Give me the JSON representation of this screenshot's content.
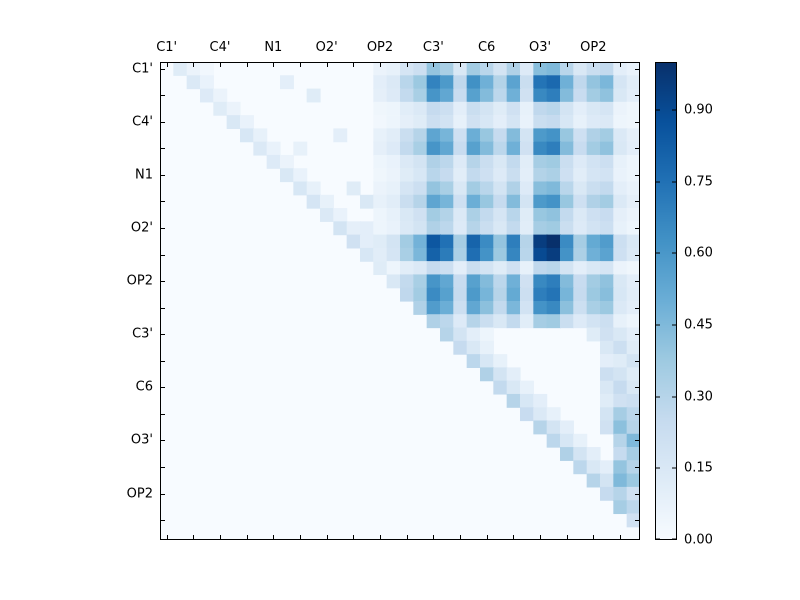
{
  "chart_data": {
    "type": "heatmap",
    "title": "",
    "xlabel": "",
    "ylabel": "",
    "matrix_size": 36,
    "tick_labels": [
      "C1'",
      "C4'",
      "N1",
      "O2'",
      "OP2",
      "C3'",
      "C6",
      "O3'",
      "OP2"
    ],
    "tick_positions": [
      0,
      4,
      8,
      12,
      16,
      20,
      24,
      28,
      32
    ],
    "colormap": {
      "name": "Blues",
      "stops": [
        [
          0.0,
          "#f7fbff"
        ],
        [
          0.125,
          "#deebf7"
        ],
        [
          0.25,
          "#c6dbef"
        ],
        [
          0.375,
          "#9ecae1"
        ],
        [
          0.5,
          "#6baed6"
        ],
        [
          0.625,
          "#4292c6"
        ],
        [
          0.75,
          "#2171b5"
        ],
        [
          0.875,
          "#08519c"
        ],
        [
          1.0,
          "#08306b"
        ]
      ]
    },
    "colorbar": {
      "vmin": 0.0,
      "vmax": 1.0,
      "ticks": [
        "0.00",
        "0.15",
        "0.30",
        "0.45",
        "0.60",
        "0.75",
        "0.90"
      ],
      "tick_values": [
        0.0,
        0.15,
        0.3,
        0.45,
        0.6,
        0.75,
        0.9
      ]
    },
    "grid": false,
    "values": [
      [
        0,
        0.12,
        0.06,
        0.03,
        0,
        0,
        0,
        0,
        0,
        0,
        0,
        0,
        0,
        0,
        0,
        0,
        0.06,
        0.08,
        0.17,
        0.22,
        0.4,
        0.34,
        0.15,
        0.36,
        0.29,
        0.18,
        0.32,
        0.13,
        0.43,
        0.45,
        0.29,
        0.15,
        0.23,
        0.26,
        0.1,
        0.07
      ],
      [
        0,
        0,
        0.14,
        0.07,
        0,
        0,
        0,
        0,
        0,
        0.1,
        0,
        0,
        0,
        0,
        0,
        0,
        0.1,
        0.14,
        0.29,
        0.38,
        0.68,
        0.59,
        0.27,
        0.63,
        0.49,
        0.31,
        0.55,
        0.23,
        0.74,
        0.78,
        0.49,
        0.27,
        0.4,
        0.46,
        0.17,
        0.11
      ],
      [
        0,
        0,
        0,
        0.13,
        0.06,
        0,
        0,
        0,
        0,
        0,
        0,
        0.12,
        0,
        0,
        0,
        0,
        0.09,
        0.13,
        0.26,
        0.34,
        0.61,
        0.53,
        0.24,
        0.56,
        0.44,
        0.28,
        0.49,
        0.2,
        0.66,
        0.7,
        0.44,
        0.24,
        0.36,
        0.41,
        0.15,
        0.1
      ],
      [
        0,
        0,
        0,
        0,
        0.12,
        0.06,
        0,
        0,
        0,
        0,
        0,
        0,
        0,
        0,
        0,
        0,
        0.04,
        0.05,
        0.11,
        0.14,
        0.25,
        0.22,
        0.1,
        0.23,
        0.18,
        0.12,
        0.2,
        0.08,
        0.27,
        0.29,
        0.18,
        0.1,
        0.15,
        0.17,
        0.06,
        0.04
      ],
      [
        0,
        0,
        0,
        0,
        0,
        0.15,
        0.07,
        0,
        0,
        0,
        0,
        0,
        0,
        0,
        0,
        0,
        0.03,
        0.05,
        0.09,
        0.12,
        0.22,
        0.19,
        0.08,
        0.2,
        0.16,
        0.1,
        0.17,
        0.07,
        0.23,
        0.25,
        0.16,
        0.08,
        0.13,
        0.14,
        0.05,
        0.04
      ],
      [
        0,
        0,
        0,
        0,
        0,
        0,
        0.16,
        0.08,
        0,
        0,
        0,
        0,
        0,
        0.1,
        0,
        0,
        0.08,
        0.11,
        0.23,
        0.3,
        0.54,
        0.47,
        0.21,
        0.5,
        0.39,
        0.25,
        0.44,
        0.18,
        0.59,
        0.62,
        0.39,
        0.21,
        0.32,
        0.36,
        0.14,
        0.09
      ],
      [
        0,
        0,
        0,
        0,
        0,
        0,
        0,
        0.14,
        0.07,
        0,
        0.08,
        0,
        0,
        0,
        0,
        0,
        0.09,
        0.13,
        0.26,
        0.34,
        0.61,
        0.53,
        0.24,
        0.56,
        0.44,
        0.28,
        0.49,
        0.2,
        0.66,
        0.7,
        0.44,
        0.24,
        0.36,
        0.41,
        0.15,
        0.1
      ],
      [
        0,
        0,
        0,
        0,
        0,
        0,
        0,
        0,
        0.13,
        0.06,
        0,
        0,
        0,
        0,
        0,
        0,
        0.05,
        0.07,
        0.14,
        0.18,
        0.32,
        0.28,
        0.13,
        0.3,
        0.23,
        0.15,
        0.26,
        0.11,
        0.35,
        0.37,
        0.23,
        0.13,
        0.19,
        0.22,
        0.08,
        0.05
      ],
      [
        0,
        0,
        0,
        0,
        0,
        0,
        0,
        0,
        0,
        0.15,
        0.07,
        0,
        0,
        0,
        0,
        0,
        0.04,
        0.06,
        0.12,
        0.16,
        0.29,
        0.25,
        0.11,
        0.26,
        0.21,
        0.13,
        0.23,
        0.1,
        0.31,
        0.33,
        0.21,
        0.11,
        0.17,
        0.19,
        0.07,
        0.05
      ],
      [
        0,
        0,
        0,
        0,
        0,
        0,
        0,
        0,
        0,
        0,
        0.16,
        0.08,
        0,
        0,
        0.12,
        0,
        0.06,
        0.08,
        0.17,
        0.22,
        0.4,
        0.34,
        0.15,
        0.36,
        0.29,
        0.18,
        0.32,
        0.13,
        0.43,
        0.45,
        0.29,
        0.15,
        0.23,
        0.26,
        0.1,
        0.07
      ],
      [
        0,
        0,
        0,
        0,
        0,
        0,
        0,
        0,
        0,
        0,
        0,
        0.17,
        0.08,
        0,
        0,
        0.15,
        0.08,
        0.11,
        0.23,
        0.3,
        0.54,
        0.47,
        0.21,
        0.5,
        0.39,
        0.25,
        0.44,
        0.18,
        0.59,
        0.62,
        0.39,
        0.21,
        0.32,
        0.36,
        0.14,
        0.09
      ],
      [
        0,
        0,
        0,
        0,
        0,
        0,
        0,
        0,
        0,
        0,
        0,
        0,
        0.14,
        0.07,
        0,
        0,
        0.05,
        0.08,
        0.15,
        0.2,
        0.36,
        0.31,
        0.14,
        0.33,
        0.26,
        0.17,
        0.29,
        0.12,
        0.39,
        0.41,
        0.26,
        0.14,
        0.21,
        0.24,
        0.09,
        0.06
      ],
      [
        0,
        0,
        0,
        0,
        0,
        0,
        0,
        0,
        0,
        0,
        0,
        0,
        0,
        0.18,
        0.09,
        0.1,
        0.05,
        0.07,
        0.14,
        0.18,
        0.32,
        0.28,
        0.13,
        0.3,
        0.23,
        0.15,
        0.26,
        0.11,
        0.35,
        0.37,
        0.23,
        0.13,
        0.19,
        0.22,
        0.08,
        0.05
      ],
      [
        0,
        0,
        0,
        0,
        0,
        0,
        0,
        0,
        0,
        0,
        0,
        0,
        0,
        0,
        0.2,
        0.1,
        0.12,
        0.18,
        0.36,
        0.48,
        0.85,
        0.75,
        0.35,
        0.8,
        0.65,
        0.4,
        0.7,
        0.3,
        0.95,
        1.0,
        0.65,
        0.35,
        0.52,
        0.58,
        0.22,
        0.15
      ],
      [
        0,
        0,
        0,
        0,
        0,
        0,
        0,
        0,
        0,
        0,
        0,
        0,
        0,
        0,
        0,
        0.16,
        0.11,
        0.17,
        0.34,
        0.46,
        0.81,
        0.71,
        0.33,
        0.76,
        0.62,
        0.38,
        0.67,
        0.29,
        0.9,
        0.95,
        0.62,
        0.33,
        0.49,
        0.55,
        0.21,
        0.14
      ],
      [
        0,
        0,
        0,
        0,
        0,
        0,
        0,
        0,
        0,
        0,
        0,
        0,
        0,
        0,
        0,
        0,
        0.12,
        0.05,
        0.11,
        0.14,
        0.25,
        0.22,
        0.1,
        0.23,
        0.18,
        0.12,
        0.2,
        0.08,
        0.27,
        0.29,
        0.18,
        0.1,
        0.15,
        0.17,
        0.06,
        0.04
      ],
      [
        0,
        0,
        0,
        0,
        0,
        0,
        0,
        0,
        0,
        0,
        0,
        0,
        0,
        0,
        0,
        0,
        0,
        0.15,
        0.26,
        0.34,
        0.61,
        0.53,
        0.24,
        0.56,
        0.44,
        0.28,
        0.49,
        0.2,
        0.66,
        0.7,
        0.44,
        0.24,
        0.36,
        0.41,
        0.15,
        0.1
      ],
      [
        0,
        0,
        0,
        0,
        0,
        0,
        0,
        0,
        0,
        0,
        0,
        0,
        0,
        0,
        0,
        0,
        0,
        0,
        0.27,
        0.36,
        0.65,
        0.56,
        0.25,
        0.59,
        0.47,
        0.3,
        0.52,
        0.22,
        0.7,
        0.74,
        0.47,
        0.25,
        0.38,
        0.43,
        0.16,
        0.11
      ],
      [
        0,
        0,
        0,
        0,
        0,
        0,
        0,
        0,
        0,
        0,
        0,
        0,
        0,
        0,
        0,
        0,
        0,
        0,
        0,
        0.32,
        0.58,
        0.5,
        0.22,
        0.53,
        0.42,
        0.26,
        0.46,
        0.19,
        0.62,
        0.66,
        0.42,
        0.22,
        0.34,
        0.38,
        0.14,
        0.1
      ],
      [
        0,
        0,
        0,
        0,
        0,
        0,
        0,
        0,
        0,
        0,
        0,
        0,
        0,
        0,
        0,
        0,
        0,
        0,
        0,
        0,
        0.32,
        0.28,
        0.13,
        0.3,
        0.23,
        0.15,
        0.26,
        0.11,
        0.35,
        0.37,
        0.23,
        0.13,
        0.19,
        0.22,
        0.08,
        0.05
      ],
      [
        0,
        0,
        0,
        0,
        0,
        0,
        0,
        0,
        0,
        0,
        0,
        0,
        0,
        0,
        0,
        0,
        0,
        0,
        0,
        0,
        0,
        0.3,
        0.18,
        0.1,
        0.05,
        0,
        0,
        0,
        0,
        0,
        0,
        0,
        0.12,
        0.2,
        0.15,
        0.1
      ],
      [
        0,
        0,
        0,
        0,
        0,
        0,
        0,
        0,
        0,
        0,
        0,
        0,
        0,
        0,
        0,
        0,
        0,
        0,
        0,
        0,
        0,
        0,
        0.25,
        0.15,
        0.08,
        0,
        0,
        0,
        0,
        0,
        0,
        0,
        0,
        0.15,
        0.22,
        0.12
      ],
      [
        0,
        0,
        0,
        0,
        0,
        0,
        0,
        0,
        0,
        0,
        0,
        0,
        0,
        0,
        0,
        0,
        0,
        0,
        0,
        0,
        0,
        0,
        0,
        0.28,
        0.16,
        0.08,
        0,
        0,
        0,
        0,
        0,
        0,
        0,
        0.1,
        0.12,
        0.18
      ],
      [
        0,
        0,
        0,
        0,
        0,
        0,
        0,
        0,
        0,
        0,
        0,
        0,
        0,
        0,
        0,
        0,
        0,
        0,
        0,
        0,
        0,
        0,
        0,
        0,
        0.32,
        0.18,
        0.1,
        0,
        0,
        0,
        0,
        0,
        0,
        0.22,
        0.18,
        0.12
      ],
      [
        0,
        0,
        0,
        0,
        0,
        0,
        0,
        0,
        0,
        0,
        0,
        0,
        0,
        0,
        0,
        0,
        0,
        0,
        0,
        0,
        0,
        0,
        0,
        0,
        0,
        0.26,
        0.15,
        0.08,
        0,
        0,
        0,
        0,
        0,
        0.15,
        0.25,
        0.15
      ],
      [
        0,
        0,
        0,
        0,
        0,
        0,
        0,
        0,
        0,
        0,
        0,
        0,
        0,
        0,
        0,
        0,
        0,
        0,
        0,
        0,
        0,
        0,
        0,
        0,
        0,
        0,
        0.3,
        0.16,
        0.1,
        0,
        0,
        0,
        0,
        0.12,
        0.2,
        0.22
      ],
      [
        0,
        0,
        0,
        0,
        0,
        0,
        0,
        0,
        0,
        0,
        0,
        0,
        0,
        0,
        0,
        0,
        0,
        0,
        0,
        0,
        0,
        0,
        0,
        0,
        0,
        0,
        0,
        0.24,
        0.14,
        0.08,
        0,
        0,
        0,
        0.18,
        0.35,
        0.28
      ],
      [
        0,
        0,
        0,
        0,
        0,
        0,
        0,
        0,
        0,
        0,
        0,
        0,
        0,
        0,
        0,
        0,
        0,
        0,
        0,
        0,
        0,
        0,
        0,
        0,
        0,
        0,
        0,
        0,
        0.3,
        0.18,
        0.1,
        0,
        0,
        0.2,
        0.42,
        0.3
      ],
      [
        0,
        0,
        0,
        0,
        0,
        0,
        0,
        0,
        0,
        0,
        0,
        0,
        0,
        0,
        0,
        0,
        0,
        0,
        0,
        0,
        0,
        0,
        0,
        0,
        0,
        0,
        0,
        0,
        0,
        0.28,
        0.16,
        0.08,
        0,
        0,
        0.3,
        0.45
      ],
      [
        0,
        0,
        0,
        0,
        0,
        0,
        0,
        0,
        0,
        0,
        0,
        0,
        0,
        0,
        0,
        0,
        0,
        0,
        0,
        0,
        0,
        0,
        0,
        0,
        0,
        0,
        0,
        0,
        0,
        0,
        0.32,
        0.18,
        0.1,
        0,
        0.25,
        0.35
      ],
      [
        0,
        0,
        0,
        0,
        0,
        0,
        0,
        0,
        0,
        0,
        0,
        0,
        0,
        0,
        0,
        0,
        0,
        0,
        0,
        0,
        0,
        0,
        0,
        0,
        0,
        0,
        0,
        0,
        0,
        0,
        0,
        0.28,
        0.15,
        0.1,
        0.4,
        0.3
      ],
      [
        0,
        0,
        0,
        0,
        0,
        0,
        0,
        0,
        0,
        0,
        0,
        0,
        0,
        0,
        0,
        0,
        0,
        0,
        0,
        0,
        0,
        0,
        0,
        0,
        0,
        0,
        0,
        0,
        0,
        0,
        0,
        0,
        0.3,
        0.18,
        0.45,
        0.38
      ],
      [
        0,
        0,
        0,
        0,
        0,
        0,
        0,
        0,
        0,
        0,
        0,
        0,
        0,
        0,
        0,
        0,
        0,
        0,
        0,
        0,
        0,
        0,
        0,
        0,
        0,
        0,
        0,
        0,
        0,
        0,
        0,
        0,
        0,
        0.25,
        0.3,
        0.2
      ],
      [
        0,
        0,
        0,
        0,
        0,
        0,
        0,
        0,
        0,
        0,
        0,
        0,
        0,
        0,
        0,
        0,
        0,
        0,
        0,
        0,
        0,
        0,
        0,
        0,
        0,
        0,
        0,
        0,
        0,
        0,
        0,
        0,
        0,
        0,
        0.35,
        0.28
      ],
      [
        0,
        0,
        0,
        0,
        0,
        0,
        0,
        0,
        0,
        0,
        0,
        0,
        0,
        0,
        0,
        0,
        0,
        0,
        0,
        0,
        0,
        0,
        0,
        0,
        0,
        0,
        0,
        0,
        0,
        0,
        0,
        0,
        0,
        0,
        0,
        0.2
      ],
      [
        0,
        0,
        0,
        0,
        0,
        0,
        0,
        0,
        0,
        0,
        0,
        0,
        0,
        0,
        0,
        0,
        0,
        0,
        0,
        0,
        0,
        0,
        0,
        0,
        0,
        0,
        0,
        0,
        0,
        0,
        0,
        0,
        0,
        0,
        0,
        0
      ]
    ]
  }
}
